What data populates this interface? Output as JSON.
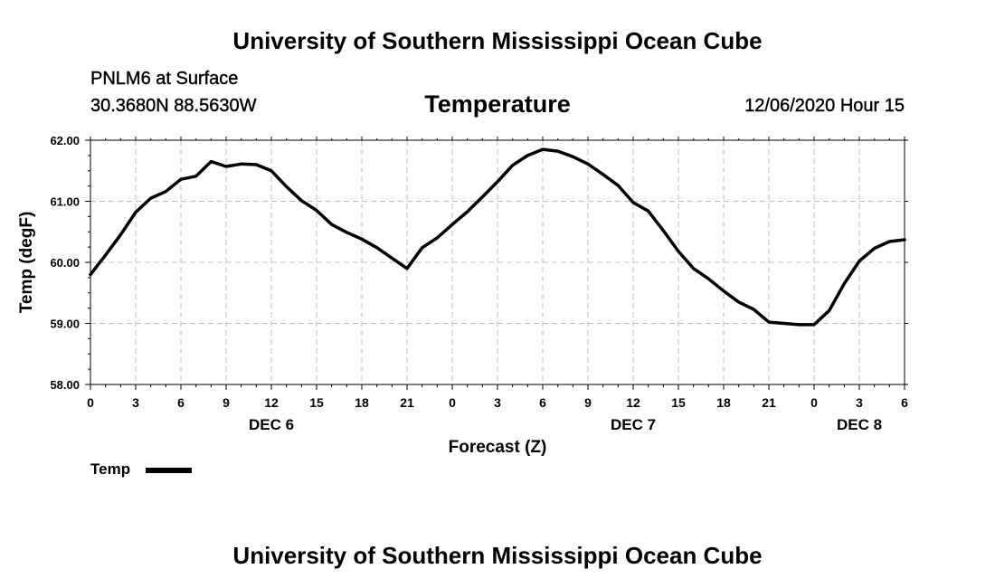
{
  "header": {
    "title": "University of Southern Mississippi Ocean Cube",
    "station": "PNLM6 at Surface",
    "coordinates": "30.3680N 88.5630W",
    "run_time": "12/06/2020 Hour 15"
  },
  "footer": {
    "title": "University of Southern Mississippi Ocean Cube"
  },
  "colors": {
    "line": "#000000",
    "grid": "#bdbdbd"
  },
  "chart_data": {
    "type": "line",
    "title": "Temperature",
    "xlabel": "Forecast (Z)",
    "ylabel": "Temp (degF)",
    "xlim": [
      0,
      54
    ],
    "ylim": [
      58,
      62
    ],
    "grid": true,
    "legend": {
      "position": "bottom-left",
      "entries": [
        "Temp"
      ]
    },
    "x_ticks": [
      0,
      3,
      6,
      9,
      12,
      15,
      18,
      21,
      24,
      27,
      30,
      33,
      36,
      39,
      42,
      45,
      48,
      51,
      54
    ],
    "x_tick_labels": [
      "0",
      "3",
      "6",
      "9",
      "12",
      "15",
      "18",
      "21",
      "0",
      "3",
      "6",
      "9",
      "12",
      "15",
      "18",
      "21",
      "0",
      "3",
      "6"
    ],
    "y_ticks": [
      58,
      59,
      60,
      61,
      62
    ],
    "y_tick_labels": [
      "58.00",
      "59.00",
      "60.00",
      "61.00",
      "62.00"
    ],
    "date_labels": [
      {
        "x": 12,
        "label": "DEC 6"
      },
      {
        "x": 36,
        "label": "DEC 7"
      },
      {
        "x": 51,
        "label": "DEC 8"
      }
    ],
    "series": [
      {
        "name": "Temp",
        "x": [
          0,
          1,
          2,
          3,
          4,
          5,
          6,
          7,
          8,
          9,
          10,
          11,
          12,
          13,
          14,
          15,
          16,
          17,
          18,
          19,
          20,
          21,
          22,
          23,
          24,
          25,
          26,
          27,
          28,
          29,
          30,
          31,
          32,
          33,
          34,
          35,
          36,
          37,
          38,
          39,
          40,
          41,
          42,
          43,
          44,
          45,
          46,
          47,
          48,
          49,
          50,
          51,
          52,
          53,
          54
        ],
        "values": [
          59.8,
          60.12,
          60.45,
          60.82,
          61.05,
          61.16,
          61.36,
          61.41,
          61.65,
          61.57,
          61.61,
          61.6,
          61.5,
          61.24,
          61.01,
          60.85,
          60.62,
          60.49,
          60.38,
          60.24,
          60.07,
          59.9,
          60.24,
          60.4,
          60.62,
          60.83,
          61.07,
          61.32,
          61.59,
          61.75,
          61.85,
          61.82,
          61.73,
          61.61,
          61.44,
          61.26,
          60.98,
          60.84,
          60.52,
          60.18,
          59.9,
          59.73,
          59.53,
          59.35,
          59.23,
          59.02,
          59.0,
          58.98,
          58.98,
          59.21,
          59.65,
          60.02,
          60.23,
          60.34,
          60.37
        ]
      }
    ]
  }
}
